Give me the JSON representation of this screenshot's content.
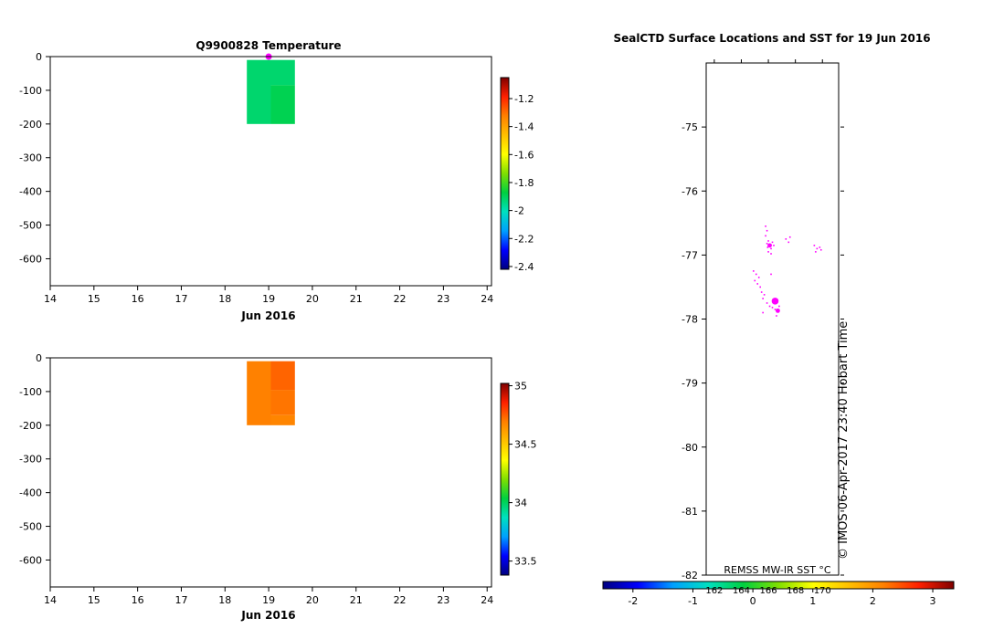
{
  "colors": {
    "temperature_cell": "#00bb55",
    "temperature_cell_alt": "#00b84a",
    "salinity_cell": "#ffa500",
    "salinity_cell_alt": "#ff9f00",
    "marker": "#ff00ff",
    "axis": "#000000",
    "colormap": [
      "#000080",
      "#0000ff",
      "#00a0ff",
      "#00e0c0",
      "#00d040",
      "#80e000",
      "#ffff00",
      "#ffc000",
      "#ff8000",
      "#ff2000",
      "#800000"
    ]
  },
  "chart_data": [
    {
      "type": "heatmap",
      "title": "Q9900828  Temperature",
      "xlabel": "Jun 2016",
      "ylabel": "",
      "xlim": [
        14,
        24.1
      ],
      "ylim": [
        -680,
        0
      ],
      "xticks": [
        14,
        15,
        16,
        17,
        18,
        19,
        20,
        21,
        22,
        23,
        24
      ],
      "yticks": [
        0,
        -100,
        -200,
        -300,
        -400,
        -500,
        -600
      ],
      "cells": [
        {
          "x0": 18.5,
          "x1": 19.05,
          "y0": -10,
          "y1": -200,
          "value": -1.92
        },
        {
          "x0": 19.05,
          "x1": 19.6,
          "y0": -10,
          "y1": -85,
          "value": -1.92
        },
        {
          "x0": 19.05,
          "x1": 19.6,
          "y0": -85,
          "y1": -200,
          "value": -1.89
        }
      ],
      "marker": {
        "x": 19.0,
        "y": 0
      },
      "colorbar": {
        "clim": [
          -2.42,
          -1.05
        ],
        "ticks": [
          -1.2,
          -1.4,
          -1.6,
          -1.8,
          -2,
          -2.2,
          -2.4
        ],
        "tick_labels": [
          "-1.2",
          "-1.4",
          "-1.6",
          "-1.8",
          "-2",
          "-2.2",
          "-2.4"
        ]
      }
    },
    {
      "type": "heatmap",
      "title": "",
      "xlabel": "Jun 2016",
      "ylabel": "",
      "xlim": [
        14,
        24.1
      ],
      "ylim": [
        -680,
        0
      ],
      "xticks": [
        14,
        15,
        16,
        17,
        18,
        19,
        20,
        21,
        22,
        23,
        24
      ],
      "yticks": [
        0,
        -100,
        -200,
        -300,
        -400,
        -500,
        -600
      ],
      "cells": [
        {
          "x0": 18.5,
          "x1": 19.05,
          "y0": -10,
          "y1": -200,
          "value": 34.69
        },
        {
          "x0": 19.05,
          "x1": 19.6,
          "y0": -10,
          "y1": -95,
          "value": 34.74
        },
        {
          "x0": 19.05,
          "x1": 19.6,
          "y0": -95,
          "y1": -170,
          "value": 34.71
        },
        {
          "x0": 19.05,
          "x1": 19.6,
          "y0": -170,
          "y1": -200,
          "value": 34.68
        }
      ],
      "colorbar": {
        "clim": [
          33.38,
          35.02
        ],
        "ticks": [
          35,
          34.5,
          34,
          33.5
        ],
        "tick_labels": [
          "35",
          "34.5",
          "34",
          "33.5"
        ]
      }
    },
    {
      "type": "scatter",
      "title": "SealCTD Surface Locations and SST for 19 Jun 2016",
      "xlabel": "",
      "ylabel": "",
      "xlim": [
        161.4,
        171.2
      ],
      "ylim": [
        -82,
        -74.0
      ],
      "yticks": [
        -75,
        -76,
        -77,
        -78,
        -79,
        -80,
        -81,
        -82
      ],
      "ytick_labels": [
        "-75",
        "-76",
        "-77",
        "-78",
        "-79",
        "-80",
        "-81",
        "-82"
      ],
      "grid": false,
      "points": [
        {
          "lon": 165.8,
          "lat": -76.55
        },
        {
          "lon": 165.9,
          "lat": -76.62
        },
        {
          "lon": 165.8,
          "lat": -76.7
        },
        {
          "lon": 166.0,
          "lat": -76.78
        },
        {
          "lon": 165.9,
          "lat": -76.82
        },
        {
          "lon": 166.1,
          "lat": -76.85
        },
        {
          "lon": 166.3,
          "lat": -76.8
        },
        {
          "lon": 166.2,
          "lat": -76.9
        },
        {
          "lon": 166.0,
          "lat": -76.95
        },
        {
          "lon": 166.2,
          "lat": -76.98
        },
        {
          "lon": 166.4,
          "lat": -76.85
        },
        {
          "lon": 165.95,
          "lat": -76.88
        },
        {
          "lon": 167.3,
          "lat": -76.75
        },
        {
          "lon": 167.5,
          "lat": -76.8
        },
        {
          "lon": 167.6,
          "lat": -76.72
        },
        {
          "lon": 169.4,
          "lat": -76.85
        },
        {
          "lon": 169.6,
          "lat": -76.9
        },
        {
          "lon": 169.8,
          "lat": -76.88
        },
        {
          "lon": 169.5,
          "lat": -76.95
        },
        {
          "lon": 169.9,
          "lat": -76.92
        },
        {
          "lon": 164.9,
          "lat": -77.25
        },
        {
          "lon": 165.1,
          "lat": -77.3
        },
        {
          "lon": 165.3,
          "lat": -77.35
        },
        {
          "lon": 165.2,
          "lat": -77.45
        },
        {
          "lon": 165.4,
          "lat": -77.5
        },
        {
          "lon": 165.5,
          "lat": -77.58
        },
        {
          "lon": 165.7,
          "lat": -77.62
        },
        {
          "lon": 165.6,
          "lat": -77.68
        },
        {
          "lon": 165.9,
          "lat": -77.75
        },
        {
          "lon": 166.1,
          "lat": -77.8
        },
        {
          "lon": 166.3,
          "lat": -77.82
        },
        {
          "lon": 166.5,
          "lat": -77.85
        },
        {
          "lon": 166.7,
          "lat": -77.88
        },
        {
          "lon": 166.8,
          "lat": -77.8
        },
        {
          "lon": 166.6,
          "lat": -77.95
        },
        {
          "lon": 165.6,
          "lat": -77.9
        },
        {
          "lon": 165.0,
          "lat": -77.4
        },
        {
          "lon": 166.2,
          "lat": -77.3
        }
      ],
      "large_markers": [
        {
          "lon": 166.1,
          "lat": -76.85
        },
        {
          "lon": 166.5,
          "lat": -77.72
        },
        {
          "lon": 166.7,
          "lat": -77.87
        }
      ],
      "annotation_vertical": "© IMOS 06-Apr-2017 23:40 Hobart Time",
      "colorbar_label": "REMSS MW-IR SST °C",
      "lon_tick_labels": [
        "162",
        "164",
        "166",
        "168",
        "170"
      ],
      "lon_ticks": [
        162,
        164,
        166,
        168,
        170
      ],
      "colorbar": {
        "clim": [
          -2.5,
          3.35
        ],
        "ticks": [
          -2,
          -1,
          0,
          1,
          2,
          3
        ],
        "tick_labels": [
          "-2",
          "-1",
          "0",
          "1",
          "2",
          "3"
        ]
      }
    }
  ]
}
